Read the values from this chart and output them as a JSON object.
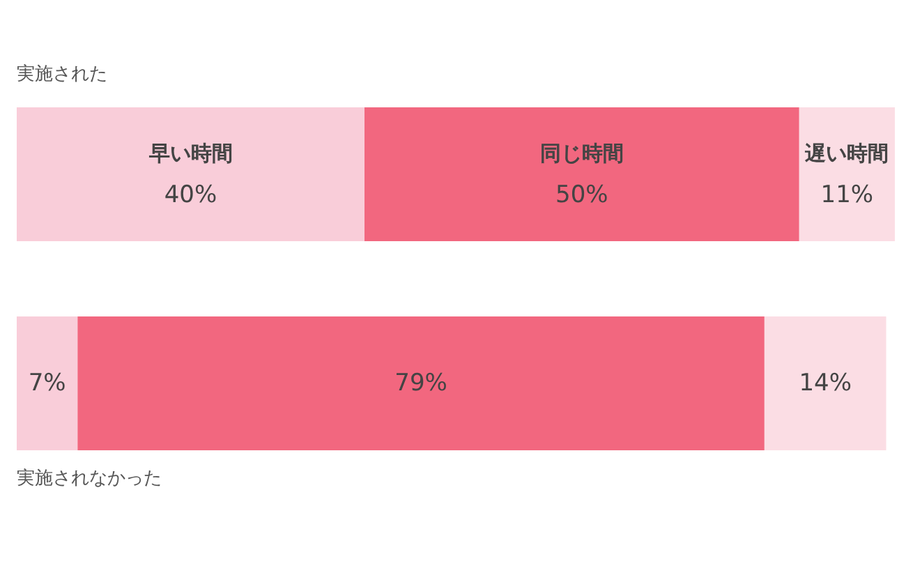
{
  "chart_data": {
    "type": "bar",
    "orientation": "horizontal",
    "stacked": true,
    "tick_labels": false,
    "legend": false,
    "categories": [
      "実施された",
      "実施されなかった"
    ],
    "series": [
      {
        "name": "早い時間",
        "color": "#f9cdd9",
        "values": [
          40,
          7
        ],
        "value_labels": [
          "40%",
          "7%"
        ]
      },
      {
        "name": "同じ時間",
        "color": "#f2677f",
        "values": [
          50,
          79
        ],
        "value_labels": [
          "50%",
          "79%"
        ]
      },
      {
        "name": "遅い時間",
        "color": "#fbdde4",
        "values": [
          11,
          14
        ],
        "value_labels": [
          "11%",
          "14%"
        ]
      }
    ]
  }
}
